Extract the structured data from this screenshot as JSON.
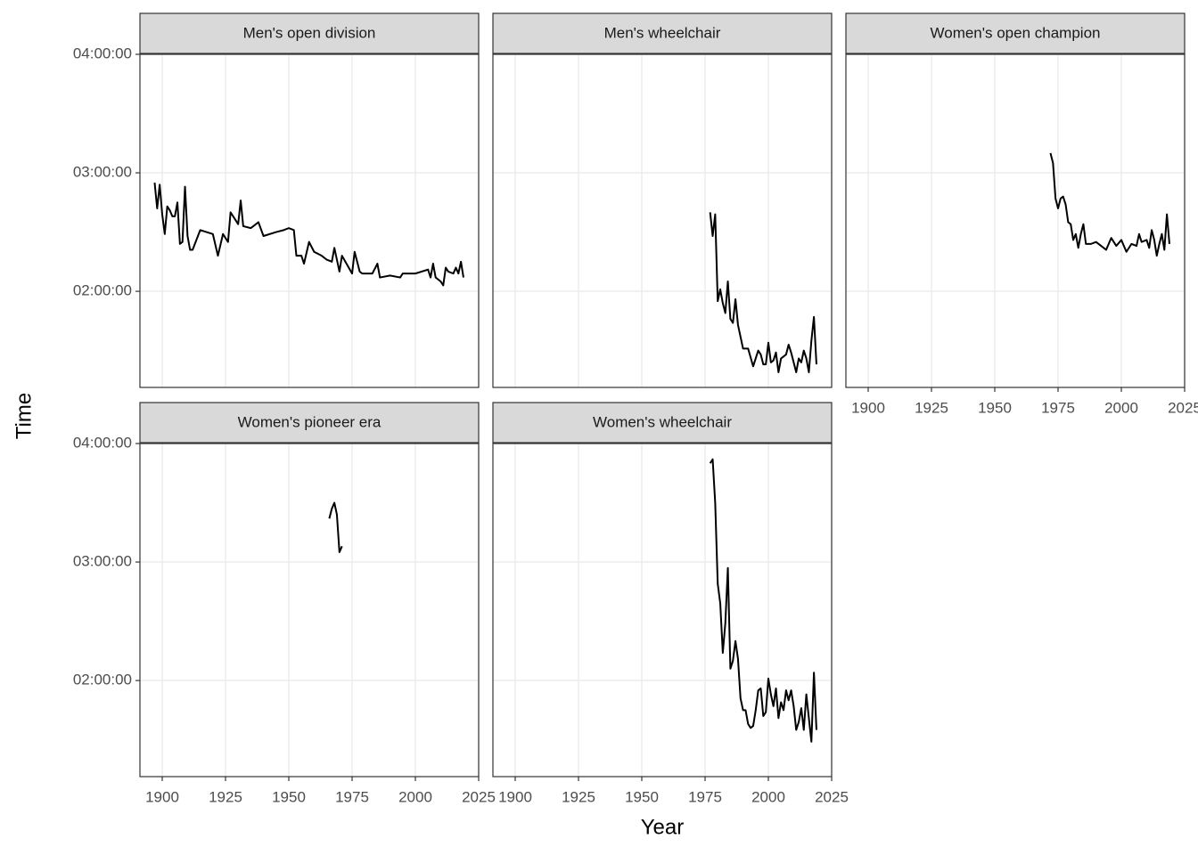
{
  "chart_data": {
    "type": "line",
    "x_label": "Year",
    "y_label": "Time",
    "xlim": [
      1891.2,
      2025
    ],
    "xticks": [
      1900,
      1925,
      1950,
      1975,
      2000,
      2025
    ],
    "ylim": [
      4280,
      14400
    ],
    "yticks": [
      {
        "value": 7200,
        "label": "02:00:00"
      },
      {
        "value": 10800,
        "label": "03:00:00"
      },
      {
        "value": 14400,
        "label": "04:00:00"
      }
    ],
    "grid": true,
    "series": [
      {
        "name": "Men's open division",
        "color": "#000000",
        "x": [
          1897,
          1898,
          1899,
          1900,
          1901,
          1902,
          1903,
          1904,
          1905,
          1906,
          1907,
          1908,
          1909,
          1910,
          1911,
          1912,
          1915,
          1920,
          1922,
          1924,
          1926,
          1927,
          1930,
          1931,
          1932,
          1935,
          1938,
          1940,
          1945,
          1948,
          1950,
          1952,
          1953,
          1955,
          1956,
          1958,
          1960,
          1963,
          1965,
          1967,
          1968,
          1970,
          1971,
          1975,
          1976,
          1978,
          1979,
          1983,
          1985,
          1986,
          1990,
          1994,
          1995,
          2000,
          2005,
          2006,
          2007,
          2008,
          2010,
          2011,
          2012,
          2013,
          2015,
          2016,
          2017,
          2018,
          2019
        ],
        "values": [
          10500,
          9720,
          10440,
          9540,
          8940,
          9780,
          9660,
          9480,
          9480,
          9900,
          8640,
          8700,
          10380,
          8880,
          8460,
          8460,
          9060,
          8940,
          8280,
          8940,
          8700,
          9600,
          9240,
          9960,
          9180,
          9120,
          9300,
          8880,
          9000,
          9060,
          9120,
          9060,
          8280,
          8280,
          8040,
          8700,
          8400,
          8280,
          8160,
          8100,
          8520,
          7800,
          8280,
          7740,
          8400,
          7800,
          7740,
          7740,
          8040,
          7620,
          7680,
          7620,
          7740,
          7740,
          7860,
          7620,
          8040,
          7620,
          7500,
          7380,
          7920,
          7800,
          7740,
          7920,
          7740,
          8100,
          7620
        ]
      },
      {
        "name": "Men's wheelchair",
        "color": "#000000",
        "x": [
          1977,
          1978,
          1979,
          1980,
          1981,
          1982,
          1983,
          1984,
          1985,
          1986,
          1987,
          1988,
          1990,
          1992,
          1994,
          1996,
          1997,
          1998,
          1999,
          2000,
          2001,
          2002,
          2003,
          2004,
          2005,
          2007,
          2008,
          2009,
          2010,
          2011,
          2012,
          2013,
          2014,
          2015,
          2016,
          2017,
          2018,
          2019
        ],
        "values": [
          9600,
          8880,
          9540,
          6900,
          7260,
          6840,
          6540,
          7500,
          6360,
          6240,
          6960,
          6180,
          5460,
          5460,
          4920,
          5400,
          5280,
          4980,
          4980,
          5640,
          5040,
          5100,
          5340,
          4740,
          5160,
          5280,
          5580,
          5340,
          5040,
          4740,
          5160,
          5040,
          5400,
          5160,
          4740,
          5700,
          6420,
          4980
        ]
      },
      {
        "name": "Women's open champion",
        "color": "#000000",
        "x": [
          1972,
          1973,
          1974,
          1975,
          1976,
          1977,
          1978,
          1979,
          1980,
          1981,
          1982,
          1983,
          1984,
          1985,
          1986,
          1988,
          1990,
          1992,
          1994,
          1996,
          1998,
          2000,
          2002,
          2004,
          2006,
          2007,
          2008,
          2010,
          2011,
          2012,
          2013,
          2014,
          2015,
          2016,
          2017,
          2018,
          2019
        ],
        "values": [
          11400,
          11100,
          10020,
          9720,
          10020,
          10080,
          9840,
          9300,
          9240,
          8760,
          8940,
          8520,
          8940,
          9240,
          8640,
          8640,
          8700,
          8580,
          8460,
          8820,
          8580,
          8760,
          8400,
          8640,
          8580,
          8940,
          8700,
          8760,
          8520,
          9060,
          8760,
          8280,
          8640,
          8940,
          8460,
          9540,
          8640
        ]
      },
      {
        "name": "Women's pioneer era",
        "color": "#000000",
        "x": [
          1966,
          1967,
          1968,
          1969,
          1970,
          1971
        ],
        "values": [
          12120,
          12420,
          12600,
          12240,
          11100,
          11280
        ]
      },
      {
        "name": "Women's wheelchair",
        "color": "#000000",
        "x": [
          1977,
          1978,
          1979,
          1980,
          1981,
          1982,
          1983,
          1984,
          1985,
          1986,
          1987,
          1988,
          1989,
          1990,
          1991,
          1992,
          1993,
          1994,
          1995,
          1996,
          1997,
          1998,
          1999,
          2000,
          2001,
          2002,
          2003,
          2004,
          2005,
          2006,
          2007,
          2008,
          2009,
          2010,
          2011,
          2012,
          2013,
          2014,
          2015,
          2016,
          2017,
          2018,
          2019
        ],
        "values": [
          13800,
          13920,
          12600,
          10140,
          9540,
          8040,
          8940,
          10620,
          7560,
          7800,
          8400,
          7860,
          6660,
          6300,
          6300,
          5880,
          5760,
          5820,
          6300,
          6900,
          6960,
          6120,
          6240,
          7260,
          6780,
          6420,
          6960,
          6060,
          6540,
          6300,
          6900,
          6600,
          6900,
          6420,
          5700,
          5940,
          6360,
          5700,
          6780,
          6060,
          5340,
          7440,
          5700
        ]
      }
    ]
  }
}
